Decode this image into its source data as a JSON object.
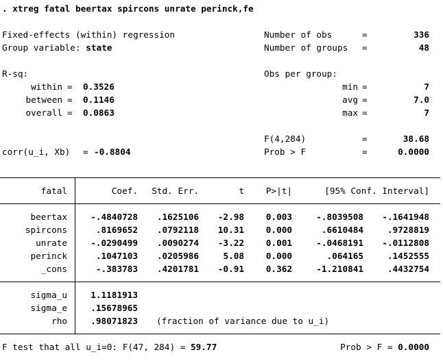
{
  "command": ". xtreg fatal beertax spircons unrate perinck,fe",
  "header": {
    "model_title": "Fixed-effects (within) regression",
    "group_var_label": "Group variable:",
    "group_var": "state",
    "num_obs_label": "Number of obs",
    "num_obs": "336",
    "num_groups_label": "Number of groups",
    "num_groups": "48",
    "rsq_label": "R-sq:",
    "rsq": [
      {
        "label": "within",
        "value": "0.3526"
      },
      {
        "label": "between",
        "value": "0.1146"
      },
      {
        "label": "overall",
        "value": "0.0863"
      }
    ],
    "obs_per_group_label": "Obs per group:",
    "obs_per_group": [
      {
        "label": "min",
        "value": "7"
      },
      {
        "label": "avg",
        "value": "7.0"
      },
      {
        "label": "max",
        "value": "7"
      }
    ],
    "f_label": "F(4,284)",
    "f_value": "38.68",
    "prob_f_label": "Prob > F",
    "prob_f_value": "0.0000",
    "corr_label": "corr(u_i, Xb)",
    "corr_value": "-0.8804"
  },
  "table": {
    "headers": [
      "fatal",
      "Coef.",
      "Std. Err.",
      "t",
      "P>|t|",
      "[95% Conf. Interval]"
    ],
    "rows": [
      {
        "var": "beertax",
        "coef": "-.4840728",
        "se": ".1625106",
        "t": "-2.98",
        "p": "0.003",
        "lo": "-.8039508",
        "hi": "-.1641948"
      },
      {
        "var": "spircons",
        "coef": ".8169652",
        "se": ".0792118",
        "t": "10.31",
        "p": "0.000",
        "lo": ".6610484",
        "hi": ".9728819"
      },
      {
        "var": "unrate",
        "coef": "-.0290499",
        "se": ".0090274",
        "t": "-3.22",
        "p": "0.001",
        "lo": "-.0468191",
        "hi": "-.0112808"
      },
      {
        "var": "perinck",
        "coef": ".1047103",
        "se": ".0205986",
        "t": "5.08",
        "p": "0.000",
        "lo": ".064165",
        "hi": ".1452555"
      },
      {
        "var": "_cons",
        "coef": "-.383783",
        "se": ".4201781",
        "t": "-0.91",
        "p": "0.362",
        "lo": "-1.210841",
        "hi": ".4432754"
      }
    ],
    "sigma_rows": [
      {
        "var": "sigma_u",
        "coef": "1.1181913"
      },
      {
        "var": "sigma_e",
        "coef": ".15678965"
      },
      {
        "var": "rho",
        "coef": ".98071823"
      }
    ],
    "rho_note": "(fraction of variance due to u_i)"
  },
  "footer": {
    "ftest_label": "F test that all u_i=0:",
    "ftest_stat": "F(47, 284) =",
    "ftest_value": "59.77",
    "prob_label": "Prob > F =",
    "prob_value": "0.0000"
  }
}
